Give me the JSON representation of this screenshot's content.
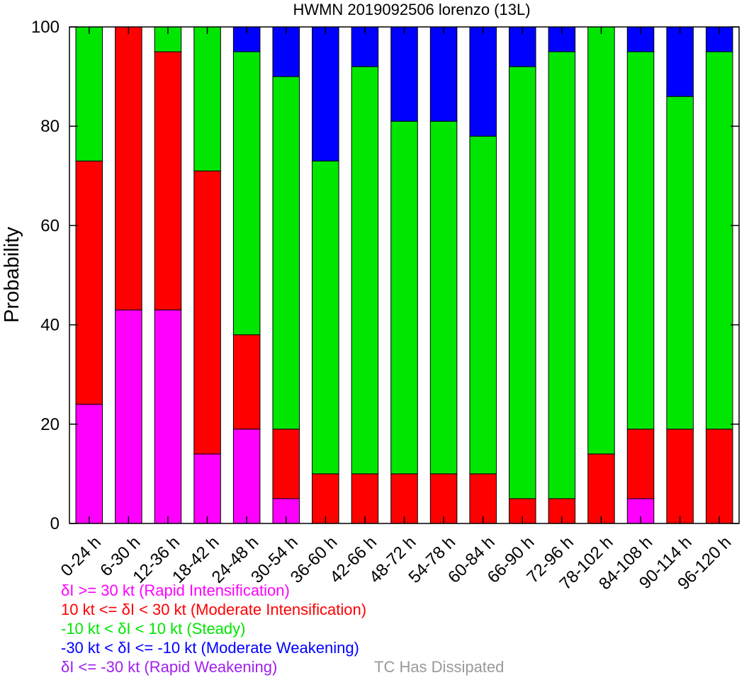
{
  "chart_data": {
    "type": "bar",
    "stacked": true,
    "title": "HWMN 2019092506 lorenzo (13L)",
    "xlabel": "",
    "ylabel": "Probability",
    "ylim": [
      0,
      100
    ],
    "yticks": [
      0,
      20,
      40,
      60,
      80,
      100
    ],
    "grid": false,
    "legend_placement": "bottom-left",
    "categories": [
      "0-24 h",
      "6-30 h",
      "12-36 h",
      "18-42 h",
      "24-48 h",
      "30-54 h",
      "36-60 h",
      "42-66 h",
      "48-72 h",
      "54-78 h",
      "60-84 h",
      "66-90 h",
      "72-96 h",
      "78-102 h",
      "84-108 h",
      "90-114 h",
      "96-120 h"
    ],
    "series": [
      {
        "name": "δI >= 30 kt (Rapid Intensification)",
        "color": "#ff00ff",
        "values": [
          24,
          43,
          43,
          14,
          19,
          5,
          0,
          0,
          0,
          0,
          0,
          0,
          0,
          0,
          5,
          0,
          0
        ]
      },
      {
        "name": "10 kt <= δI < 30 kt (Moderate Intensification)",
        "color": "#ff0000",
        "values": [
          49,
          57,
          52,
          57,
          19,
          14,
          10,
          10,
          10,
          10,
          10,
          5,
          5,
          14,
          14,
          19,
          19
        ]
      },
      {
        "name": "-10 kt < δI < 10 kt (Steady)",
        "color": "#00e600",
        "values": [
          27,
          0,
          5,
          29,
          57,
          71,
          63,
          82,
          71,
          71,
          68,
          87,
          90,
          86,
          76,
          67,
          76
        ]
      },
      {
        "name": "-30 kt < δI <= -10 kt (Moderate Weakening)",
        "color": "#0000ff",
        "values": [
          0,
          0,
          0,
          0,
          5,
          10,
          27,
          8,
          19,
          19,
          22,
          8,
          5,
          0,
          5,
          14,
          5
        ]
      },
      {
        "name": "δI <= -30 kt (Rapid Weakening)",
        "color": "#a020f0",
        "values": [
          0,
          0,
          0,
          0,
          0,
          0,
          0,
          0,
          0,
          0,
          0,
          0,
          0,
          0,
          0,
          0,
          0
        ]
      }
    ]
  },
  "legend": {
    "items": [
      {
        "label": "δI >= 30 kt (Rapid Intensification)",
        "color": "#ff00ff"
      },
      {
        "label": "10 kt <= δI < 30 kt (Moderate Intensification)",
        "color": "#ff0000"
      },
      {
        "label": "-10 kt < δI < 10 kt (Steady)",
        "color": "#00e600"
      },
      {
        "label": "-30 kt < δI <= -10 kt (Moderate Weakening)",
        "color": "#0000ff"
      },
      {
        "label": "δI <= -30 kt (Rapid Weakening)",
        "color": "#a020f0"
      }
    ],
    "dissipated_label": "TC Has Dissipated",
    "dissipated_color": "#999999"
  }
}
